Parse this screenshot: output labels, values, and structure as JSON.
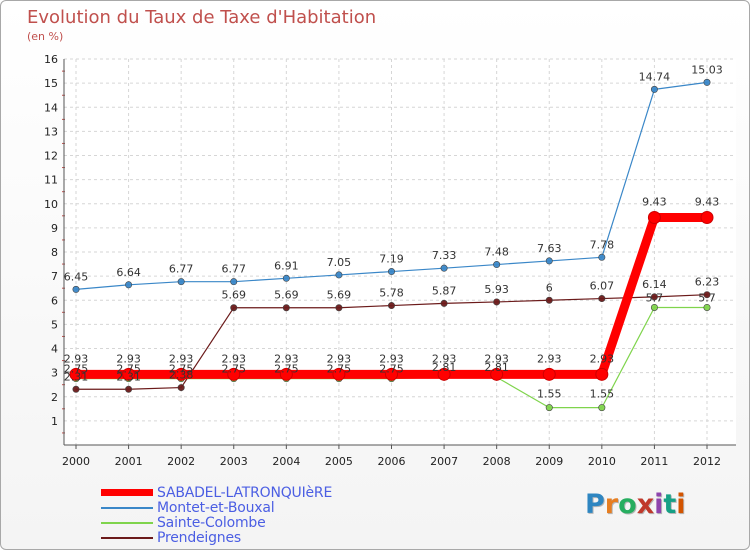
{
  "header": {
    "title": "Evolution du Taux de Taxe d'Habitation",
    "unit": "(en %)"
  },
  "logo": {
    "text": "Proxiti",
    "colors": [
      "#2e86c1",
      "#e67e22",
      "#27ae60",
      "#c0392b",
      "#8e44ad",
      "#16a085",
      "#d35400"
    ]
  },
  "chart_data": {
    "type": "line",
    "title": "Evolution du Taux de Taxe d'Habitation",
    "ylabel": "(en %)",
    "xlabel": "",
    "ylim": [
      0,
      16
    ],
    "yticks": [
      1,
      2,
      3,
      4,
      5,
      6,
      7,
      8,
      9,
      10,
      11,
      12,
      13,
      14,
      15,
      16
    ],
    "categories": [
      "2000",
      "2001",
      "2002",
      "2003",
      "2004",
      "2005",
      "2006",
      "2007",
      "2008",
      "2009",
      "2010",
      "2011",
      "2012"
    ],
    "series": [
      {
        "name": "SABADEL-LATRONQUIèRE",
        "color": "#ff0000",
        "values": [
          2.93,
          2.93,
          2.93,
          2.93,
          2.93,
          2.93,
          2.93,
          2.93,
          2.93,
          2.93,
          2.93,
          9.43,
          9.43
        ],
        "labels": [
          "2.93",
          "2.93",
          "2.93",
          "2.93",
          "2.93",
          "2.93",
          "2.93",
          "2.93",
          "2.93",
          "2.93",
          "2.93",
          "9.43",
          "9.43"
        ]
      },
      {
        "name": "Montet-et-Bouxal",
        "color": "#3a87c8",
        "values": [
          6.45,
          6.64,
          6.77,
          6.77,
          6.91,
          7.05,
          7.19,
          7.33,
          7.48,
          7.63,
          7.78,
          14.74,
          15.03
        ],
        "labels": [
          "6.45",
          "6.64",
          "6.77",
          "6.77",
          "6.91",
          "7.05",
          "7.19",
          "7.33",
          "7.48",
          "7.63",
          "7.78",
          "14.74",
          "15.03"
        ]
      },
      {
        "name": "Sainte-Colombe",
        "color": "#7fd44c",
        "values": [
          2.75,
          2.75,
          2.75,
          2.75,
          2.75,
          2.75,
          2.75,
          2.81,
          2.81,
          1.55,
          1.55,
          5.7,
          5.7
        ],
        "labels": [
          "2.75",
          "2.75",
          "2.75",
          "2.75",
          "2.75",
          "2.75",
          "2.75",
          "2.81",
          "2.81",
          "1.55",
          "1.55",
          "5.7",
          "5.7"
        ]
      },
      {
        "name": "Prendeignes",
        "color": "#6b1a1a",
        "values": [
          2.31,
          2.31,
          2.38,
          5.69,
          5.69,
          5.69,
          5.78,
          5.87,
          5.93,
          6.0,
          6.07,
          6.14,
          6.23
        ],
        "labels": [
          "2.31",
          "2.31",
          "2.38",
          "5.69",
          "5.69",
          "5.69",
          "5.78",
          "5.87",
          "5.93",
          "6",
          "6.07",
          "6.14",
          "6.23"
        ]
      }
    ],
    "legend": "bottom-left"
  }
}
